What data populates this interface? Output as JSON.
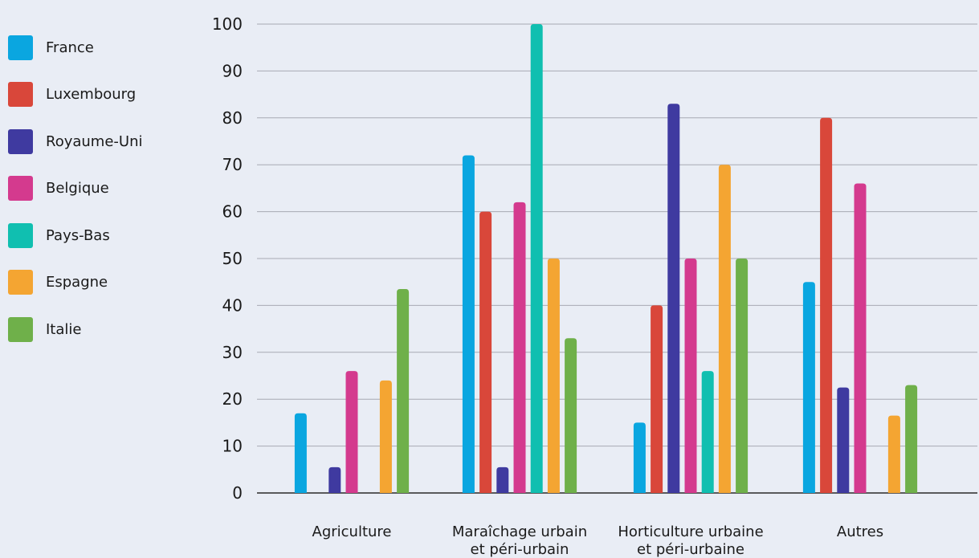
{
  "colors": {
    "France": "#0aa6e0",
    "Luxembourg": "#d9473a",
    "Royaume-Uni": "#3f3aa0",
    "Belgique": "#d43a8e",
    "Pays-Bas": "#10bfb0",
    "Espagne": "#f4a532",
    "Italie": "#6fb04a",
    "grid": "#a7a9b3",
    "background": "#e9edf5"
  },
  "chart_data": {
    "type": "bar",
    "categories": [
      [
        "Agriculture"
      ],
      [
        "Maraîchage urbain",
        "et péri-urbain"
      ],
      [
        "Horticulture urbaine",
        "et péri-urbaine"
      ],
      [
        "Autres"
      ]
    ],
    "series": [
      {
        "name": "France",
        "values": [
          17,
          72,
          15,
          45
        ]
      },
      {
        "name": "Luxembourg",
        "values": [
          null,
          60,
          40,
          80
        ]
      },
      {
        "name": "Royaume-Uni",
        "values": [
          5.5,
          5.5,
          83,
          22.5
        ]
      },
      {
        "name": "Belgique",
        "values": [
          26,
          62,
          50,
          66
        ]
      },
      {
        "name": "Pays-Bas",
        "values": [
          null,
          100,
          26,
          null
        ]
      },
      {
        "name": "Espagne",
        "values": [
          24,
          50,
          70,
          16.5
        ]
      },
      {
        "name": "Italie",
        "values": [
          43.5,
          33,
          50,
          23
        ]
      }
    ],
    "yticks": [
      "0",
      "10",
      "20",
      "30",
      "40",
      "50",
      "60",
      "70",
      "80",
      "90",
      "100"
    ],
    "ylim": [
      0,
      100
    ],
    "grid": true,
    "legend_position": "left",
    "xlabel": "",
    "ylabel": ""
  }
}
